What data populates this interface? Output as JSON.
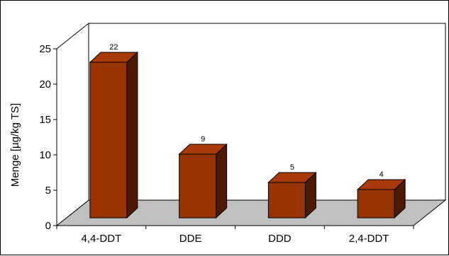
{
  "chart_data": {
    "type": "bar",
    "style": "3d-column",
    "categories": [
      "4,4-DDT",
      "DDE",
      "DDD",
      "2,4-DDT"
    ],
    "values": [
      22,
      9,
      5,
      4
    ],
    "data_labels": [
      "22",
      "9",
      "5",
      "4"
    ],
    "title": "",
    "xlabel": "",
    "ylabel": "Menge [µg/kg TS]",
    "ylim": [
      0,
      25
    ],
    "yticks": [
      0,
      5,
      10,
      15,
      20,
      25
    ],
    "grid": false,
    "legend": "none",
    "colors": {
      "bar_front": "#993300",
      "bar_top": "#a83a0a",
      "bar_side": "#4d1900",
      "floor": "#c0c0c0",
      "walls": "#ffffff"
    }
  }
}
